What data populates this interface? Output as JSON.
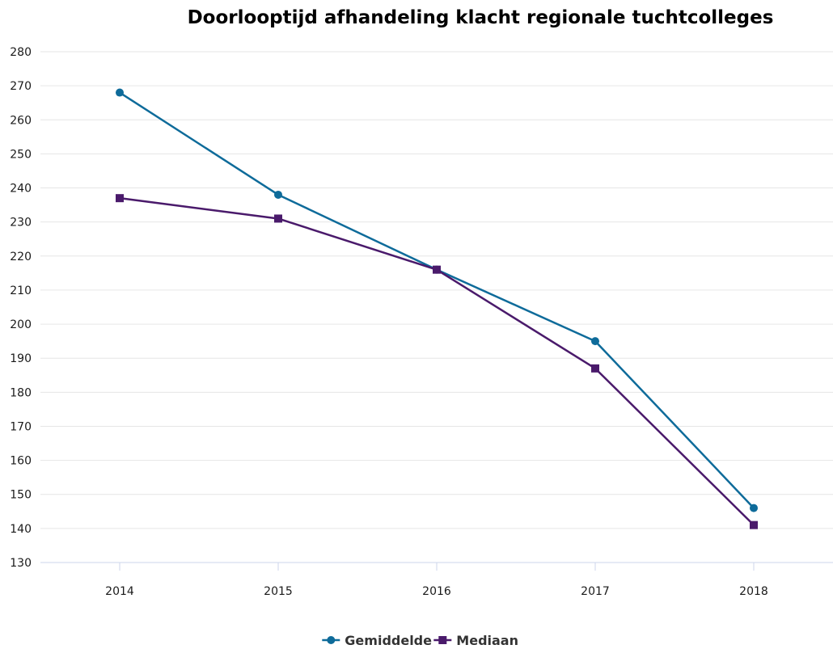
{
  "chart_data": {
    "type": "line",
    "title": "Doorlooptijd afhandeling klacht regionale tuchtcolleges",
    "xlabel": "",
    "ylabel": "",
    "categories": [
      "2014",
      "2015",
      "2016",
      "2017",
      "2018"
    ],
    "ylim": [
      130,
      280
    ],
    "yticks": [
      130,
      140,
      150,
      160,
      170,
      180,
      190,
      200,
      210,
      220,
      230,
      240,
      250,
      260,
      270,
      280
    ],
    "grid": true,
    "legend_position": "bottom-center",
    "series": [
      {
        "name": "Gemiddelde",
        "values": [
          268,
          238,
          216,
          195,
          146
        ],
        "color": "#0e6b9a",
        "marker": "circle"
      },
      {
        "name": "Mediaan",
        "values": [
          237,
          231,
          216,
          187,
          141
        ],
        "color": "#4a1a6b",
        "marker": "square"
      }
    ]
  }
}
